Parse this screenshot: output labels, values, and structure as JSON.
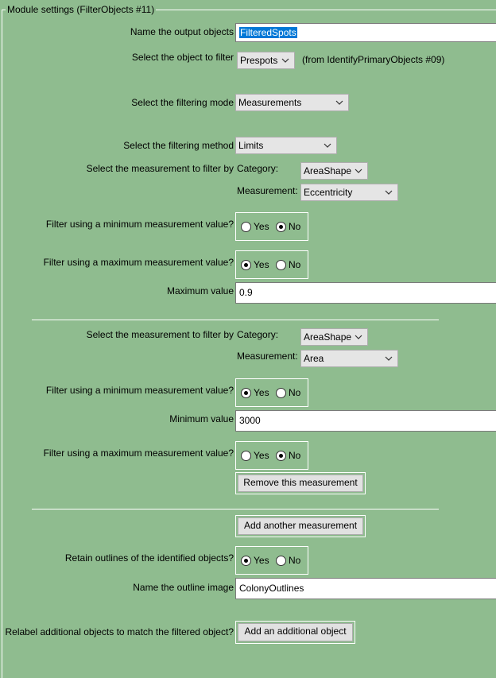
{
  "module_title": "Module settings (FilterObjects #11)",
  "output_objects": {
    "label": "Name the output objects",
    "value": "FilteredSpots"
  },
  "object_to_filter": {
    "label": "Select the object to filter",
    "value": "Prespots",
    "note": "(from IdentifyPrimaryObjects #09)"
  },
  "filtering_mode": {
    "label": "Select the filtering mode",
    "value": "Measurements"
  },
  "filtering_method": {
    "label": "Select the filtering method",
    "value": "Limits"
  },
  "measurement_1": {
    "label": "Select the measurement to filter by",
    "category_label": "Category:",
    "category_value": "AreaShape",
    "measurement_label": "Measurement:",
    "measurement_value": "Eccentricity",
    "min_label": "Filter using a minimum measurement value?",
    "min_yes": "Yes",
    "min_no": "No",
    "min_selected": "No",
    "max_label": "Filter using a maximum measurement value?",
    "max_yes": "Yes",
    "max_no": "No",
    "max_selected": "Yes",
    "max_value_label": "Maximum value",
    "max_value": "0.9"
  },
  "measurement_2": {
    "label": "Select the measurement to filter by",
    "category_label": "Category:",
    "category_value": "AreaShape",
    "measurement_label": "Measurement:",
    "measurement_value": "Area",
    "min_label": "Filter using a minimum measurement value?",
    "min_yes": "Yes",
    "min_no": "No",
    "min_selected": "Yes",
    "min_value_label": "Minimum value",
    "min_value": "3000",
    "max_label": "Filter using a maximum measurement value?",
    "max_yes": "Yes",
    "max_no": "No",
    "max_selected": "No",
    "remove_button": "Remove this measurement"
  },
  "add_measurement_button": "Add another measurement",
  "retain_outlines": {
    "label": "Retain outlines of the identified objects?",
    "yes": "Yes",
    "no": "No",
    "selected": "Yes"
  },
  "outline_image": {
    "label": "Name the outline image",
    "value": "ColonyOutlines"
  },
  "relabel": {
    "label": "Relabel additional objects to match the filtered object?",
    "button": "Add an additional object"
  },
  "icons": {
    "dropdown": "chevron-down-icon",
    "radio": "radio-button"
  },
  "colors": {
    "background": "#8fbc8f",
    "selection": "#0078d7"
  }
}
